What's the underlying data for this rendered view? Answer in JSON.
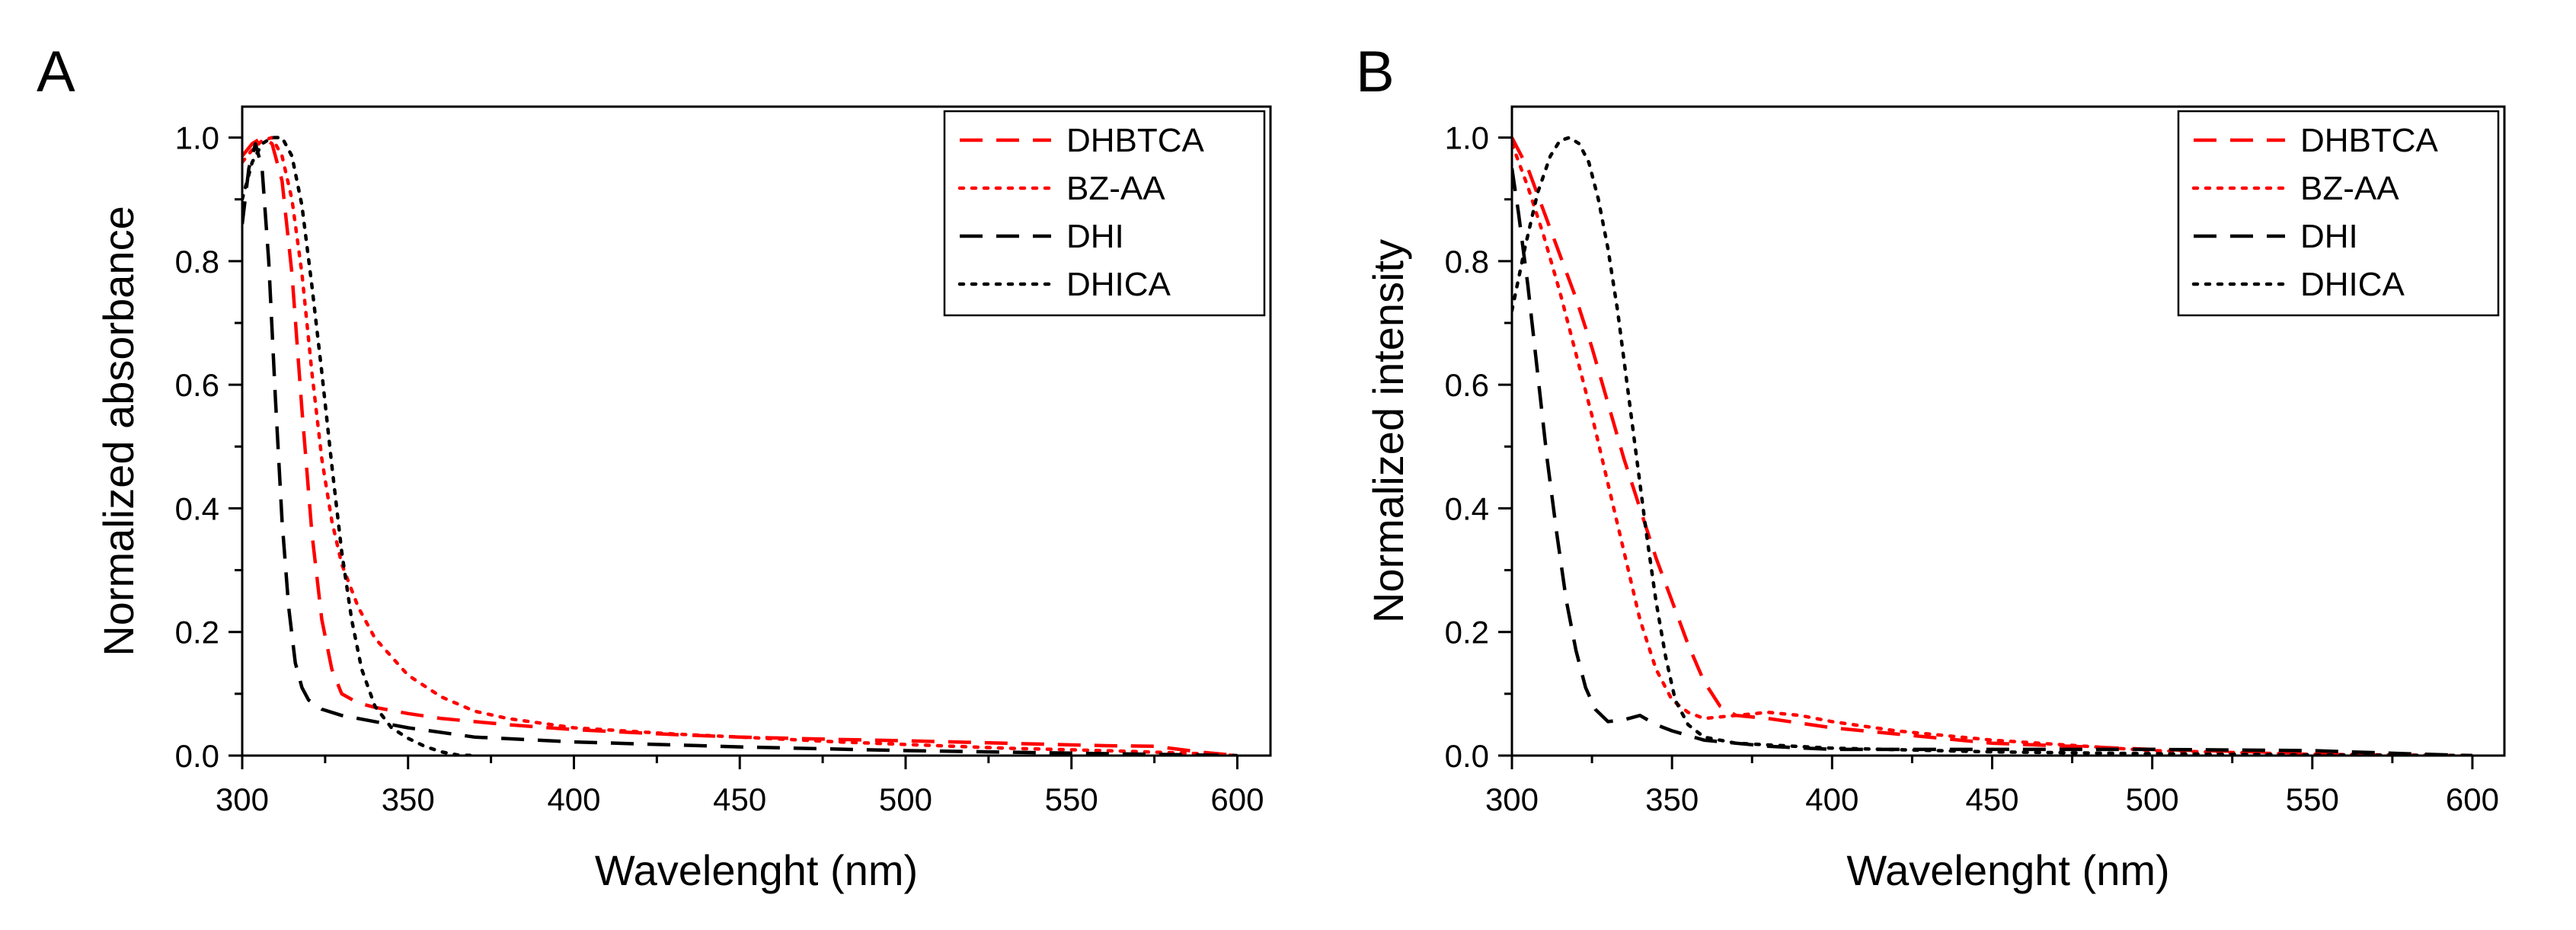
{
  "chart_data": [
    {
      "panel_label": "A",
      "type": "line",
      "xlabel": "Wavelenght (nm)",
      "ylabel": "Normalized absorbance",
      "xlim": [
        300,
        610
      ],
      "ylim": [
        0,
        1.05
      ],
      "xticks": [
        300,
        350,
        400,
        450,
        500,
        550,
        600
      ],
      "yticks": [
        0.0,
        0.2,
        0.4,
        0.6,
        0.8,
        1.0
      ],
      "xtick_labels": [
        "300",
        "350",
        "400",
        "450",
        "500",
        "550",
        "600"
      ],
      "ytick_labels": [
        "0.0",
        "0.2",
        "0.4",
        "0.6",
        "0.8",
        "1.0"
      ],
      "legend_position": "top-right",
      "series": [
        {
          "name": "DHBTCA",
          "color": "#ff0000",
          "style": "dashed",
          "x": [
            300,
            303,
            306,
            309,
            312,
            315,
            318,
            321,
            324,
            327,
            330,
            335,
            340,
            350,
            360,
            380,
            400,
            430,
            450,
            480,
            500,
            530,
            560,
            575,
            590,
            600
          ],
          "y": [
            0.97,
            0.99,
            1.0,
            0.99,
            0.93,
            0.78,
            0.56,
            0.36,
            0.22,
            0.14,
            0.1,
            0.085,
            0.078,
            0.068,
            0.06,
            0.05,
            0.042,
            0.034,
            0.03,
            0.026,
            0.024,
            0.02,
            0.016,
            0.015,
            0.005,
            0.0
          ]
        },
        {
          "name": "BZ-AA",
          "color": "#ff0000",
          "style": "dotted",
          "x": [
            300,
            303,
            306,
            309,
            312,
            315,
            318,
            321,
            324,
            327,
            330,
            335,
            340,
            350,
            360,
            370,
            380,
            400,
            430,
            450,
            480,
            500,
            530,
            560,
            590,
            600
          ],
          "y": [
            0.96,
            0.98,
            0.995,
            1.0,
            0.97,
            0.9,
            0.78,
            0.62,
            0.48,
            0.38,
            0.31,
            0.24,
            0.19,
            0.13,
            0.095,
            0.072,
            0.06,
            0.045,
            0.035,
            0.03,
            0.022,
            0.018,
            0.012,
            0.008,
            0.003,
            0.0
          ]
        },
        {
          "name": "DHI",
          "color": "#000000",
          "style": "dashed",
          "x": [
            300,
            302,
            304,
            306,
            308,
            310,
            312,
            314,
            316,
            318,
            320,
            324,
            330,
            340,
            350,
            370,
            400,
            450,
            500,
            550,
            600
          ],
          "y": [
            0.86,
            0.95,
            0.99,
            0.95,
            0.8,
            0.58,
            0.38,
            0.24,
            0.15,
            0.11,
            0.09,
            0.075,
            0.065,
            0.055,
            0.045,
            0.03,
            0.022,
            0.014,
            0.008,
            0.004,
            0.0
          ]
        },
        {
          "name": "DHICA",
          "color": "#000000",
          "style": "dotted",
          "x": [
            300,
            303,
            306,
            309,
            312,
            315,
            318,
            321,
            324,
            327,
            330,
            333,
            336,
            340,
            345,
            350,
            355,
            360,
            365,
            370
          ],
          "y": [
            0.9,
            0.96,
            0.99,
            1.0,
            1.0,
            0.97,
            0.89,
            0.76,
            0.62,
            0.47,
            0.33,
            0.22,
            0.14,
            0.08,
            0.045,
            0.028,
            0.015,
            0.006,
            0.001,
            0.0
          ]
        }
      ]
    },
    {
      "panel_label": "B",
      "type": "line",
      "xlabel": "Wavelenght (nm)",
      "ylabel": "Normalized intensity",
      "xlim": [
        300,
        610
      ],
      "ylim": [
        0,
        1.05
      ],
      "xticks": [
        300,
        350,
        400,
        450,
        500,
        550,
        600
      ],
      "yticks": [
        0.0,
        0.2,
        0.4,
        0.6,
        0.8,
        1.0
      ],
      "xtick_labels": [
        "300",
        "350",
        "400",
        "450",
        "500",
        "550",
        "600"
      ],
      "ytick_labels": [
        "0.0",
        "0.2",
        "0.4",
        "0.6",
        "0.8",
        "1.0"
      ],
      "legend_position": "top-right",
      "series": [
        {
          "name": "DHBTCA",
          "color": "#ff0000",
          "style": "dashed",
          "x": [
            300,
            305,
            310,
            315,
            320,
            325,
            330,
            335,
            340,
            345,
            350,
            355,
            360,
            365,
            370,
            380,
            400,
            450,
            500,
            550,
            600
          ],
          "y": [
            1.0,
            0.95,
            0.88,
            0.81,
            0.74,
            0.66,
            0.57,
            0.48,
            0.4,
            0.32,
            0.25,
            0.18,
            0.12,
            0.08,
            0.065,
            0.06,
            0.045,
            0.02,
            0.01,
            0.004,
            0.0
          ]
        },
        {
          "name": "BZ-AA",
          "color": "#ff0000",
          "style": "dotted",
          "x": [
            300,
            305,
            310,
            315,
            320,
            325,
            330,
            335,
            340,
            345,
            350,
            355,
            360,
            370,
            380,
            390,
            400,
            420,
            450,
            500,
            550,
            600
          ],
          "y": [
            0.99,
            0.92,
            0.84,
            0.75,
            0.65,
            0.55,
            0.44,
            0.33,
            0.22,
            0.14,
            0.09,
            0.07,
            0.06,
            0.065,
            0.07,
            0.065,
            0.055,
            0.04,
            0.025,
            0.008,
            0.002,
            0.0
          ]
        },
        {
          "name": "DHI",
          "color": "#000000",
          "style": "dashed",
          "x": [
            300,
            302,
            305,
            308,
            311,
            314,
            317,
            320,
            323,
            326,
            330,
            335,
            340,
            345,
            350,
            360,
            380,
            400,
            450,
            500,
            550,
            580,
            600
          ],
          "y": [
            0.95,
            0.88,
            0.76,
            0.62,
            0.48,
            0.36,
            0.25,
            0.17,
            0.11,
            0.075,
            0.055,
            0.058,
            0.065,
            0.05,
            0.04,
            0.025,
            0.015,
            0.01,
            0.01,
            0.01,
            0.008,
            0.003,
            0.0
          ]
        },
        {
          "name": "DHICA",
          "color": "#000000",
          "style": "dotted",
          "x": [
            300,
            304,
            308,
            312,
            315,
            318,
            321,
            324,
            327,
            330,
            333,
            336,
            339,
            342,
            345,
            348,
            351,
            355,
            360,
            370,
            400,
            450,
            500,
            550,
            600
          ],
          "y": [
            0.72,
            0.82,
            0.91,
            0.97,
            0.995,
            1.0,
            0.99,
            0.96,
            0.9,
            0.82,
            0.72,
            0.6,
            0.48,
            0.36,
            0.25,
            0.16,
            0.09,
            0.05,
            0.03,
            0.02,
            0.012,
            0.006,
            0.003,
            0.001,
            0.0
          ]
        }
      ]
    }
  ]
}
